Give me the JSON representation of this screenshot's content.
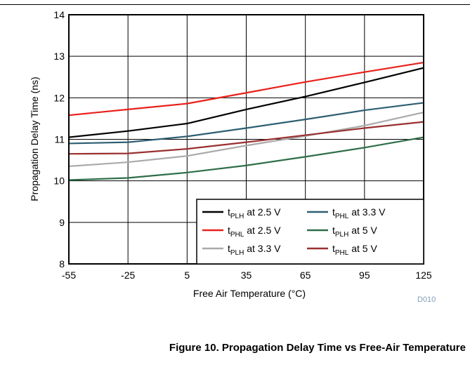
{
  "caption": "Figure 10. Propagation Delay Time vs Free-Air Temperature",
  "figure_id": "D010",
  "chart_data": {
    "type": "line",
    "title": "",
    "xlabel": "Free Air Temperature (°C)",
    "ylabel": "Propagation Delay Time (ns)",
    "xlim": [
      -55,
      125
    ],
    "ylim": [
      8,
      14
    ],
    "xticks": [
      -55,
      -25,
      5,
      35,
      65,
      95,
      125
    ],
    "yticks": [
      8,
      9,
      10,
      11,
      12,
      13,
      14
    ],
    "grid": true,
    "legend_position": "bottom-right",
    "series": [
      {
        "name": "tPLH at 2.5 V",
        "base": "t",
        "sub": "PLH",
        "suffix": " at 2.5 V",
        "color": "#000000",
        "x": [
          -55,
          -25,
          5,
          35,
          65,
          95,
          125
        ],
        "y": [
          11.05,
          11.2,
          11.38,
          11.72,
          12.03,
          12.37,
          12.72
        ]
      },
      {
        "name": "tPHL at 2.5 V",
        "base": "t",
        "sub": "PHL",
        "suffix": " at 2.5 V",
        "color": "#e8211c",
        "x": [
          -55,
          -25,
          5,
          35,
          65,
          95,
          125
        ],
        "y": [
          11.58,
          11.72,
          11.86,
          12.12,
          12.38,
          12.62,
          12.85
        ]
      },
      {
        "name": "tPLH at 3.3 V",
        "base": "t",
        "sub": "PLH",
        "suffix": " at 3.3 V",
        "color": "#aaaaaa",
        "x": [
          -55,
          -25,
          5,
          35,
          65,
          95,
          125
        ],
        "y": [
          10.35,
          10.45,
          10.6,
          10.85,
          11.08,
          11.33,
          11.65
        ]
      },
      {
        "name": "tPHL at 3.3 V",
        "base": "t",
        "sub": "PHL",
        "suffix": " at 3.3 V",
        "color": "#2e5f73",
        "x": [
          -55,
          -25,
          5,
          35,
          65,
          95,
          125
        ],
        "y": [
          10.9,
          10.93,
          11.07,
          11.27,
          11.48,
          11.7,
          11.88
        ]
      },
      {
        "name": "tPLH at 5 V",
        "base": "t",
        "sub": "PLH",
        "suffix": " at 5 V",
        "color": "#2e6e4a",
        "x": [
          -55,
          -25,
          5,
          35,
          65,
          95,
          125
        ],
        "y": [
          10.02,
          10.07,
          10.2,
          10.37,
          10.58,
          10.8,
          11.05
        ]
      },
      {
        "name": "tPHL at 5 V",
        "base": "t",
        "sub": "PHL",
        "suffix": " at 5 V",
        "color": "#9b3030",
        "x": [
          -55,
          -25,
          5,
          35,
          65,
          95,
          125
        ],
        "y": [
          10.65,
          10.66,
          10.77,
          10.93,
          11.1,
          11.27,
          11.42
        ]
      }
    ],
    "legend_order": [
      0,
      3,
      1,
      4,
      2,
      5
    ]
  }
}
